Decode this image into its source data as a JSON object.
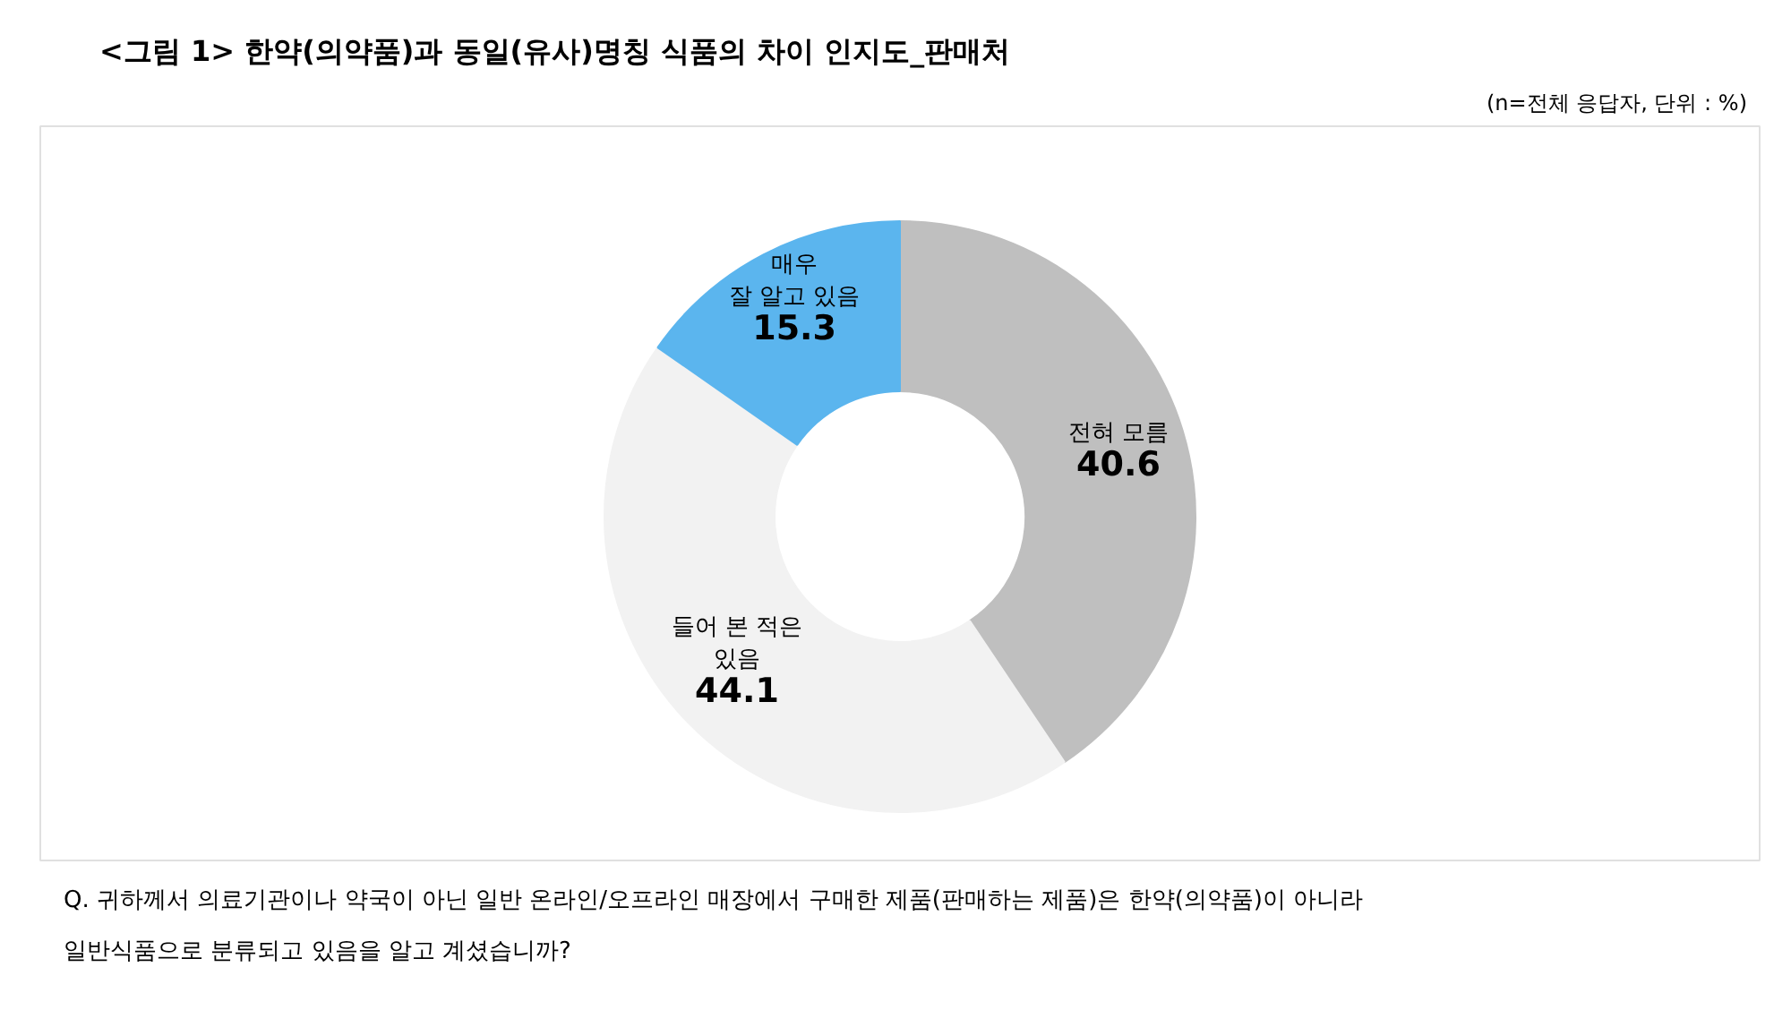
{
  "chart_data": {
    "type": "donut",
    "title": "<그림 1>  한약(의약품)과 동일(유사)명칭 식품의 차이 인지도_판매처",
    "subtitle": "(n=전체 응답자, 단위 : %)",
    "categories": [
      "전혀 모름",
      "들어 본 적은\n있음",
      "매우\n잘 알고 있음"
    ],
    "values": [
      40.6,
      44.1,
      15.3
    ],
    "colors": [
      "#bfbfbf",
      "#f2f2f2",
      "#5bb5ee"
    ],
    "data_labels": true,
    "legend": false,
    "annotations": [
      "Q. 귀하께서 의료기관이나 약국이 아닌 일반 온라인/오프라인 매장에서 구매한 제품(판매하는 제품)은 한약(의약품)이 아니라\n일반식품으로 분류되고 있음을 알고 계셨습니까?"
    ]
  }
}
